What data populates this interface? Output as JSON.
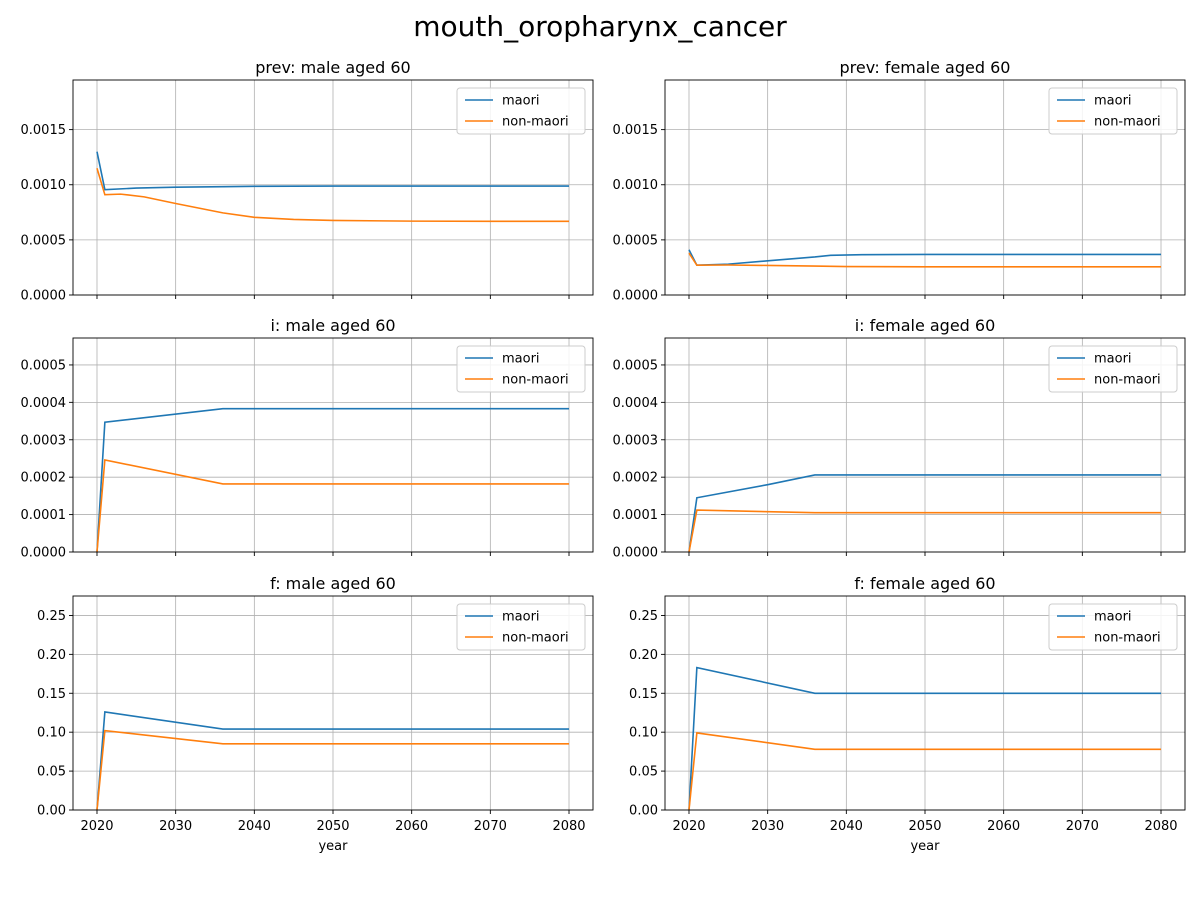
{
  "figure": {
    "title": "mouth_oropharynx_cancer"
  },
  "chart_data": [
    {
      "type": "line",
      "title": "prev: male aged 60",
      "xlabel": "",
      "ylabel": "",
      "xlim": [
        2016.95,
        2083.05
      ],
      "ylim": [
        0,
        0.00195
      ],
      "yticks": [
        0.0,
        0.0005,
        0.001,
        0.0015
      ],
      "ytick_labels": [
        "0.0000",
        "0.0005",
        "0.0010",
        "0.0015"
      ],
      "xticks": [
        2020,
        2030,
        2040,
        2050,
        2060,
        2070,
        2080
      ],
      "xtick_labels": [
        "",
        "",
        "",
        "",
        "",
        "",
        ""
      ],
      "grid": true,
      "legend": "top-right",
      "series": [
        {
          "name": "maori",
          "color": "#1f77b4",
          "x": [
            2020,
            2021,
            2025,
            2030,
            2036,
            2040,
            2050,
            2060,
            2080
          ],
          "y": [
            0.0013,
            0.000955,
            0.00097,
            0.000978,
            0.000982,
            0.000986,
            0.000988,
            0.000988,
            0.000988
          ]
        },
        {
          "name": "non-maori",
          "color": "#ff7f0e",
          "x": [
            2020,
            2021,
            2023,
            2026,
            2030,
            2036,
            2040,
            2045,
            2050,
            2060,
            2070,
            2080
          ],
          "y": [
            0.00115,
            0.00091,
            0.000915,
            0.00089,
            0.00083,
            0.000745,
            0.000705,
            0.000685,
            0.000676,
            0.00067,
            0.000668,
            0.000668
          ]
        }
      ]
    },
    {
      "type": "line",
      "title": "prev: female aged 60",
      "xlabel": "",
      "ylabel": "",
      "xlim": [
        2016.95,
        2083.05
      ],
      "ylim": [
        0,
        0.00195
      ],
      "yticks": [
        0.0,
        0.0005,
        0.001,
        0.0015
      ],
      "ytick_labels": [
        "0.0000",
        "0.0005",
        "0.0010",
        "0.0015"
      ],
      "xticks": [
        2020,
        2030,
        2040,
        2050,
        2060,
        2070,
        2080
      ],
      "xtick_labels": [
        "",
        "",
        "",
        "",
        "",
        "",
        ""
      ],
      "grid": true,
      "legend": "top-right",
      "series": [
        {
          "name": "maori",
          "color": "#1f77b4",
          "x": [
            2020,
            2021,
            2025,
            2030,
            2036,
            2038,
            2042,
            2050,
            2080
          ],
          "y": [
            0.00041,
            0.00027,
            0.00028,
            0.00031,
            0.000345,
            0.00036,
            0.000366,
            0.000368,
            0.000368
          ]
        },
        {
          "name": "non-maori",
          "color": "#ff7f0e",
          "x": [
            2020,
            2021,
            2025,
            2030,
            2036,
            2040,
            2050,
            2080
          ],
          "y": [
            0.00038,
            0.00027,
            0.000272,
            0.000268,
            0.000262,
            0.000258,
            0.000256,
            0.000256
          ]
        }
      ]
    },
    {
      "type": "line",
      "title": "i: male aged 60",
      "xlabel": "",
      "ylabel": "",
      "xlim": [
        2016.95,
        2083.05
      ],
      "ylim": [
        0,
        0.000572
      ],
      "yticks": [
        0.0,
        0.0001,
        0.0002,
        0.0003,
        0.0004,
        0.0005
      ],
      "ytick_labels": [
        "0.0000",
        "0.0001",
        "0.0002",
        "0.0003",
        "0.0004",
        "0.0005"
      ],
      "xticks": [
        2020,
        2030,
        2040,
        2050,
        2060,
        2070,
        2080
      ],
      "xtick_labels": [
        "",
        "",
        "",
        "",
        "",
        "",
        ""
      ],
      "grid": true,
      "legend": "top-right",
      "series": [
        {
          "name": "maori",
          "color": "#1f77b4",
          "x": [
            2020,
            2021,
            2036,
            2080
          ],
          "y": [
            0.0,
            0.000347,
            0.000383,
            0.000383
          ]
        },
        {
          "name": "non-maori",
          "color": "#ff7f0e",
          "x": [
            2020,
            2021,
            2036,
            2080
          ],
          "y": [
            0.0,
            0.000246,
            0.000182,
            0.000182
          ]
        }
      ]
    },
    {
      "type": "line",
      "title": "i: female aged 60",
      "xlabel": "",
      "ylabel": "",
      "xlim": [
        2016.95,
        2083.05
      ],
      "ylim": [
        0,
        0.000572
      ],
      "yticks": [
        0.0,
        0.0001,
        0.0002,
        0.0003,
        0.0004,
        0.0005
      ],
      "ytick_labels": [
        "0.0000",
        "0.0001",
        "0.0002",
        "0.0003",
        "0.0004",
        "0.0005"
      ],
      "xticks": [
        2020,
        2030,
        2040,
        2050,
        2060,
        2070,
        2080
      ],
      "xtick_labels": [
        "",
        "",
        "",
        "",
        "",
        "",
        ""
      ],
      "grid": true,
      "legend": "top-right",
      "series": [
        {
          "name": "maori",
          "color": "#1f77b4",
          "x": [
            2020,
            2021,
            2030,
            2036,
            2080
          ],
          "y": [
            0.0,
            0.000145,
            0.00018,
            0.000206,
            0.000206
          ]
        },
        {
          "name": "non-maori",
          "color": "#ff7f0e",
          "x": [
            2020,
            2021,
            2036,
            2080
          ],
          "y": [
            0.0,
            0.000112,
            0.000105,
            0.000105
          ]
        }
      ]
    },
    {
      "type": "line",
      "title": "f: male aged 60",
      "xlabel": "year",
      "ylabel": "",
      "xlim": [
        2016.95,
        2083.05
      ],
      "ylim": [
        0,
        0.275
      ],
      "yticks": [
        0.0,
        0.05,
        0.1,
        0.15,
        0.2,
        0.25
      ],
      "ytick_labels": [
        "0.00",
        "0.05",
        "0.10",
        "0.15",
        "0.20",
        "0.25"
      ],
      "xticks": [
        2020,
        2030,
        2040,
        2050,
        2060,
        2070,
        2080
      ],
      "xtick_labels": [
        "2020",
        "2030",
        "2040",
        "2050",
        "2060",
        "2070",
        "2080"
      ],
      "grid": true,
      "legend": "top-right",
      "series": [
        {
          "name": "maori",
          "color": "#1f77b4",
          "x": [
            2020,
            2021,
            2036,
            2080
          ],
          "y": [
            0.0,
            0.126,
            0.104,
            0.104
          ]
        },
        {
          "name": "non-maori",
          "color": "#ff7f0e",
          "x": [
            2020,
            2021,
            2036,
            2080
          ],
          "y": [
            0.0,
            0.102,
            0.085,
            0.085
          ]
        }
      ]
    },
    {
      "type": "line",
      "title": "f: female aged 60",
      "xlabel": "year",
      "ylabel": "",
      "xlim": [
        2016.95,
        2083.05
      ],
      "ylim": [
        0,
        0.275
      ],
      "yticks": [
        0.0,
        0.05,
        0.1,
        0.15,
        0.2,
        0.25
      ],
      "ytick_labels": [
        "0.00",
        "0.05",
        "0.10",
        "0.15",
        "0.20",
        "0.25"
      ],
      "xticks": [
        2020,
        2030,
        2040,
        2050,
        2060,
        2070,
        2080
      ],
      "xtick_labels": [
        "2020",
        "2030",
        "2040",
        "2050",
        "2060",
        "2070",
        "2080"
      ],
      "grid": true,
      "legend": "top-right",
      "series": [
        {
          "name": "maori",
          "color": "#1f77b4",
          "x": [
            2020,
            2021,
            2036,
            2080
          ],
          "y": [
            0.0,
            0.183,
            0.15,
            0.15
          ]
        },
        {
          "name": "non-maori",
          "color": "#ff7f0e",
          "x": [
            2020,
            2021,
            2036,
            2080
          ],
          "y": [
            0.0,
            0.099,
            0.078,
            0.078
          ]
        }
      ]
    }
  ]
}
